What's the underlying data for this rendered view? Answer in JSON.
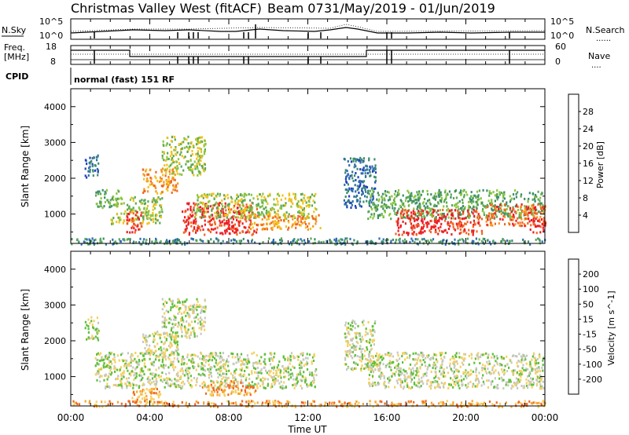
{
  "header": {
    "site": "Christmas Valley West (fitACF)",
    "beam": "Beam 07",
    "dates": "31/May/2019 - 01/Jun/2019"
  },
  "panels": {
    "nsky_label": "N.Sky",
    "nsearch_label": "N.Search",
    "nsky_ticks": [
      "10^5",
      "10^0"
    ],
    "nsearch_ticks": [
      "10^5",
      "10^0"
    ],
    "freq_label_line1": "Freq.",
    "freq_label_line2": "[MHz]",
    "freq_ticks": [
      "18",
      "8"
    ],
    "nave_label": "Nave",
    "nave_ticks": [
      "60",
      "0"
    ],
    "cpid_label": "CPID",
    "cpid_text": "normal (fast) 151 RF"
  },
  "colors": {
    "power": [
      "#0000ff",
      "#2040c0",
      "#2f6db0",
      "#3c8c6c",
      "#5aa855",
      "#8cc63f",
      "#f3c11a",
      "#f7941d",
      "#f26522",
      "#ed1c24"
    ],
    "velocity": [
      "#1f3fbf",
      "#3a8a8a",
      "#2e8b57",
      "#5fbf3a",
      "#c8c8c0",
      "#f5d060",
      "#f7a42a",
      "#f26522",
      "#ed1c24"
    ]
  },
  "chart_data": [
    {
      "type": "heatmap",
      "title": "Power",
      "ylabel": "Slant Range [km]",
      "yticks": [
        "1000",
        "2000",
        "3000",
        "4000"
      ],
      "ylim": [
        180,
        4500
      ],
      "xticks": [
        "00:00",
        "04:00",
        "08:00",
        "12:00",
        "16:00",
        "20:00",
        "00:00"
      ],
      "colorbar_label": "Power [dB]",
      "colorbar_ticks": [
        "4",
        "8",
        "12",
        "16",
        "20",
        "24",
        "28"
      ],
      "regions": [
        {
          "t0": 0.7,
          "t1": 1.4,
          "r0": 2050,
          "r1": 2700,
          "level": 2
        },
        {
          "t0": 1.2,
          "t1": 2.4,
          "r0": 1200,
          "r1": 1700,
          "level": 4
        },
        {
          "t0": 2.0,
          "t1": 4.6,
          "r0": 750,
          "r1": 1500,
          "level": 5
        },
        {
          "t0": 2.8,
          "t1": 3.6,
          "r0": 500,
          "r1": 1100,
          "level": 9
        },
        {
          "t0": 3.6,
          "t1": 5.4,
          "r0": 1600,
          "r1": 2300,
          "level": 7
        },
        {
          "t0": 4.6,
          "t1": 6.8,
          "r0": 2100,
          "r1": 3200,
          "level": 5
        },
        {
          "t0": 5.6,
          "t1": 9.4,
          "r0": 450,
          "r1": 1350,
          "level": 9
        },
        {
          "t0": 6.2,
          "t1": 12.4,
          "r0": 900,
          "r1": 1600,
          "level": 5
        },
        {
          "t0": 9.0,
          "t1": 12.6,
          "r0": 600,
          "r1": 1000,
          "level": 7
        },
        {
          "t0": 13.8,
          "t1": 15.4,
          "r0": 1200,
          "r1": 2600,
          "level": 2
        },
        {
          "t0": 15.0,
          "t1": 23.9,
          "r0": 900,
          "r1": 1700,
          "level": 4
        },
        {
          "t0": 16.4,
          "t1": 20.8,
          "r0": 450,
          "r1": 1150,
          "level": 9
        },
        {
          "t0": 21.0,
          "t1": 24.0,
          "r0": 700,
          "r1": 1300,
          "level": 8
        },
        {
          "t0": 23.2,
          "t1": 24.0,
          "r0": 500,
          "r1": 900,
          "level": 9
        },
        {
          "t0": 0.0,
          "t1": 24.0,
          "r0": 180,
          "r1": 350,
          "level": 3
        }
      ]
    },
    {
      "type": "heatmap",
      "title": "Velocity",
      "ylabel": "Slant Range [km]",
      "yticks": [
        "1000",
        "2000",
        "3000",
        "4000"
      ],
      "ylim": [
        180,
        4500
      ],
      "xticks": [
        "00:00",
        "04:00",
        "08:00",
        "12:00",
        "16:00",
        "20:00",
        "00:00"
      ],
      "xlabel": "Time UT",
      "colorbar_label": "Velocity [m s^-1]",
      "colorbar_ticks": [
        "200",
        "100",
        "50",
        "15",
        "-15",
        "-50",
        "-100",
        "-200"
      ],
      "regions": [
        {
          "t0": 0.7,
          "t1": 1.4,
          "r0": 2050,
          "r1": 2700,
          "level": 4
        },
        {
          "t0": 1.2,
          "t1": 12.4,
          "r0": 700,
          "r1": 1700,
          "level": 4
        },
        {
          "t0": 3.6,
          "t1": 5.4,
          "r0": 1600,
          "r1": 2300,
          "level": 4
        },
        {
          "t0": 4.6,
          "t1": 6.8,
          "r0": 2100,
          "r1": 3200,
          "level": 4
        },
        {
          "t0": 3.0,
          "t1": 4.5,
          "r0": 300,
          "r1": 700,
          "level": 6
        },
        {
          "t0": 6.5,
          "t1": 9.5,
          "r0": 500,
          "r1": 900,
          "level": 6
        },
        {
          "t0": 13.8,
          "t1": 15.4,
          "r0": 1200,
          "r1": 2600,
          "level": 4
        },
        {
          "t0": 15.0,
          "t1": 23.9,
          "r0": 700,
          "r1": 1700,
          "level": 4
        },
        {
          "t0": 0.0,
          "t1": 24.0,
          "r0": 180,
          "r1": 350,
          "level": 6
        }
      ]
    }
  ]
}
